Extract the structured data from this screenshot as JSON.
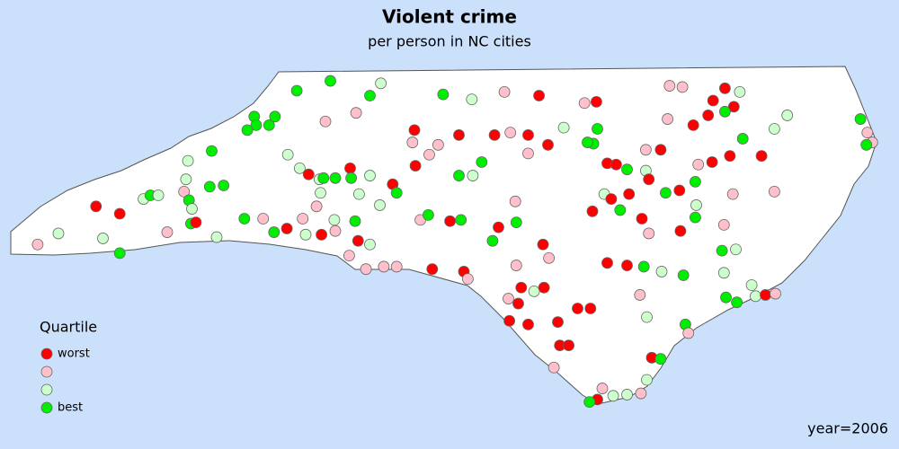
{
  "map": {
    "title": "Violent crime",
    "subtitle": "per person in NC cities",
    "legend": {
      "title": "Quartile",
      "entries": [
        {
          "color": "#ff0000",
          "label": "worst"
        },
        {
          "color": "#ffc0cb"
        },
        {
          "color": "#ccffcc"
        },
        {
          "color": "#00ee00",
          "label": "best"
        }
      ]
    },
    "year_label": "year=2006",
    "points": [
      [
        -84.01,
        35.15,
        2
      ],
      [
        -83.8,
        35.24,
        3
      ],
      [
        -83.42,
        35.46,
        1
      ],
      [
        -83.18,
        35.4,
        1
      ],
      [
        -83.35,
        35.2,
        3
      ],
      [
        -83.18,
        35.08,
        4
      ],
      [
        -82.94,
        35.52,
        3
      ],
      [
        -82.87,
        35.55,
        4
      ],
      [
        -82.79,
        35.55,
        3
      ],
      [
        -82.7,
        35.25,
        2
      ],
      [
        -82.51,
        35.68,
        3
      ],
      [
        -82.53,
        35.58,
        2
      ],
      [
        -82.48,
        35.51,
        4
      ],
      [
        -82.45,
        35.44,
        3
      ],
      [
        -82.46,
        35.32,
        4
      ],
      [
        -82.41,
        35.33,
        1
      ],
      [
        -82.49,
        35.83,
        3
      ],
      [
        -82.25,
        35.91,
        4
      ],
      [
        -82.27,
        35.62,
        4
      ],
      [
        -82.13,
        35.63,
        4
      ],
      [
        -82.2,
        35.21,
        3
      ],
      [
        -81.92,
        35.36,
        4
      ],
      [
        -81.73,
        35.36,
        2
      ],
      [
        -81.62,
        35.25,
        4
      ],
      [
        -81.49,
        35.28,
        1
      ],
      [
        -81.3,
        35.23,
        3
      ],
      [
        -81.14,
        35.23,
        1
      ],
      [
        -81.0,
        35.26,
        2
      ],
      [
        -81.82,
        36.19,
        4
      ],
      [
        -81.8,
        36.12,
        4
      ],
      [
        -81.67,
        36.12,
        4
      ],
      [
        -81.61,
        36.19,
        4
      ],
      [
        -81.89,
        36.08,
        4
      ],
      [
        -81.39,
        36.4,
        4
      ],
      [
        -81.05,
        36.48,
        4
      ],
      [
        -81.1,
        36.15,
        2
      ],
      [
        -80.79,
        36.22,
        2
      ],
      [
        -80.65,
        36.36,
        4
      ],
      [
        -80.54,
        36.46,
        3
      ],
      [
        -81.48,
        35.88,
        3
      ],
      [
        -81.36,
        35.77,
        3
      ],
      [
        -81.27,
        35.72,
        1
      ],
      [
        -81.16,
        35.68,
        3
      ],
      [
        -81.12,
        35.69,
        4
      ],
      [
        -81.0,
        35.69,
        4
      ],
      [
        -80.85,
        35.77,
        1
      ],
      [
        -80.84,
        35.69,
        4
      ],
      [
        -81.15,
        35.57,
        3
      ],
      [
        -81.19,
        35.46,
        2
      ],
      [
        -81.33,
        35.36,
        2
      ],
      [
        -81.01,
        35.35,
        3
      ],
      [
        -80.76,
        35.56,
        3
      ],
      [
        -80.65,
        35.71,
        3
      ],
      [
        -80.55,
        35.47,
        3
      ],
      [
        -80.42,
        35.64,
        1
      ],
      [
        -80.38,
        35.57,
        4
      ],
      [
        -80.8,
        35.34,
        4
      ],
      [
        -80.77,
        35.18,
        1
      ],
      [
        -80.65,
        35.15,
        3
      ],
      [
        -80.86,
        35.06,
        2
      ],
      [
        -80.69,
        34.95,
        2
      ],
      [
        -80.51,
        34.97,
        2
      ],
      [
        -80.38,
        34.97,
        2
      ],
      [
        -80.22,
        35.98,
        2
      ],
      [
        -80.19,
        35.79,
        1
      ],
      [
        -80.05,
        35.88,
        2
      ],
      [
        -79.96,
        35.96,
        2
      ],
      [
        -80.14,
        35.35,
        2
      ],
      [
        -80.06,
        35.39,
        4
      ],
      [
        -80.02,
        34.95,
        1
      ],
      [
        -79.84,
        35.34,
        1
      ],
      [
        -79.73,
        35.35,
        4
      ],
      [
        -79.7,
        34.93,
        1
      ],
      [
        -79.66,
        34.87,
        2
      ],
      [
        -79.91,
        36.37,
        4
      ],
      [
        -79.62,
        36.33,
        3
      ],
      [
        -79.29,
        36.39,
        2
      ],
      [
        -78.94,
        36.36,
        1
      ],
      [
        -78.48,
        36.3,
        2
      ],
      [
        -78.36,
        36.31,
        1
      ],
      [
        -80.2,
        36.08,
        1
      ],
      [
        -79.75,
        36.04,
        1
      ],
      [
        -79.39,
        36.04,
        1
      ],
      [
        -79.23,
        36.06,
        2
      ],
      [
        -79.05,
        36.04,
        1
      ],
      [
        -79.05,
        35.89,
        2
      ],
      [
        -78.85,
        35.96,
        1
      ],
      [
        -78.69,
        36.1,
        3
      ],
      [
        -79.52,
        35.82,
        4
      ],
      [
        -79.75,
        35.71,
        4
      ],
      [
        -79.61,
        35.71,
        3
      ],
      [
        -79.18,
        35.5,
        2
      ],
      [
        -79.17,
        35.33,
        4
      ],
      [
        -79.41,
        35.18,
        4
      ],
      [
        -79.35,
        35.29,
        1
      ],
      [
        -78.9,
        35.15,
        1
      ],
      [
        -78.84,
        35.04,
        2
      ],
      [
        -79.17,
        34.98,
        2
      ],
      [
        -79.12,
        34.8,
        1
      ],
      [
        -79.25,
        34.71,
        2
      ],
      [
        -79.15,
        34.67,
        1
      ],
      [
        -78.99,
        34.77,
        3
      ],
      [
        -78.89,
        34.8,
        1
      ],
      [
        -79.05,
        34.5,
        1
      ],
      [
        -79.24,
        34.53,
        1
      ],
      [
        -78.75,
        34.52,
        1
      ],
      [
        -78.55,
        34.63,
        1
      ],
      [
        -78.42,
        34.63,
        1
      ],
      [
        -78.73,
        34.33,
        1
      ],
      [
        -78.64,
        34.33,
        1
      ],
      [
        -78.79,
        34.15,
        2
      ],
      [
        -78.39,
        35.97,
        4
      ],
      [
        -78.35,
        36.09,
        4
      ],
      [
        -78.45,
        35.98,
        4
      ],
      [
        -78.25,
        35.81,
        1
      ],
      [
        -78.16,
        35.8,
        1
      ],
      [
        -78.05,
        35.76,
        4
      ],
      [
        -78.28,
        35.56,
        3
      ],
      [
        -78.21,
        35.52,
        1
      ],
      [
        -78.03,
        35.56,
        1
      ],
      [
        -78.12,
        35.43,
        4
      ],
      [
        -78.4,
        35.42,
        1
      ],
      [
        -77.86,
        35.75,
        3
      ],
      [
        -77.86,
        35.92,
        2
      ],
      [
        -77.71,
        35.92,
        1
      ],
      [
        -77.64,
        36.17,
        2
      ],
      [
        -77.38,
        36.12,
        1
      ],
      [
        -77.23,
        36.2,
        1
      ],
      [
        -77.06,
        36.42,
        1
      ],
      [
        -77.18,
        36.32,
        1
      ],
      [
        -76.97,
        36.27,
        1
      ],
      [
        -77.06,
        36.23,
        4
      ],
      [
        -76.91,
        36.39,
        3
      ],
      [
        -77.62,
        36.44,
        2
      ],
      [
        -77.49,
        36.43,
        2
      ],
      [
        -76.88,
        36.01,
        4
      ],
      [
        -77.01,
        35.87,
        1
      ],
      [
        -77.19,
        35.82,
        1
      ],
      [
        -77.33,
        35.8,
        2
      ],
      [
        -76.69,
        35.87,
        1
      ],
      [
        -76.56,
        36.09,
        3
      ],
      [
        -76.43,
        36.2,
        3
      ],
      [
        -75.69,
        36.17,
        4
      ],
      [
        -75.62,
        36.06,
        2
      ],
      [
        -75.57,
        35.98,
        2
      ],
      [
        -75.63,
        35.96,
        4
      ],
      [
        -77.52,
        35.59,
        1
      ],
      [
        -77.36,
        35.66,
        4
      ],
      [
        -77.35,
        35.47,
        3
      ],
      [
        -77.36,
        35.37,
        4
      ],
      [
        -77.9,
        35.36,
        1
      ],
      [
        -77.51,
        35.26,
        1
      ],
      [
        -77.83,
        35.24,
        2
      ],
      [
        -77.07,
        35.31,
        2
      ],
      [
        -76.98,
        35.56,
        2
      ],
      [
        -76.56,
        35.58,
        2
      ],
      [
        -77.09,
        35.1,
        4
      ],
      [
        -76.95,
        35.11,
        3
      ],
      [
        -77.07,
        34.92,
        3
      ],
      [
        -78.25,
        35.0,
        1
      ],
      [
        -78.05,
        34.98,
        1
      ],
      [
        -77.88,
        34.97,
        4
      ],
      [
        -77.7,
        34.93,
        3
      ],
      [
        -77.48,
        34.9,
        4
      ],
      [
        -77.92,
        34.74,
        2
      ],
      [
        -77.85,
        34.56,
        3
      ],
      [
        -77.46,
        34.5,
        4
      ],
      [
        -77.43,
        34.43,
        2
      ],
      [
        -77.05,
        34.72,
        4
      ],
      [
        -76.94,
        34.68,
        4
      ],
      [
        -76.75,
        34.73,
        3
      ],
      [
        -76.65,
        34.74,
        1
      ],
      [
        -76.55,
        34.75,
        2
      ],
      [
        -76.79,
        34.82,
        3
      ],
      [
        -77.8,
        34.23,
        1
      ],
      [
        -77.71,
        34.22,
        4
      ],
      [
        -77.85,
        34.05,
        3
      ],
      [
        -77.91,
        33.94,
        2
      ],
      [
        -78.05,
        33.93,
        3
      ],
      [
        -78.19,
        33.92,
        3
      ],
      [
        -78.3,
        33.98,
        2
      ],
      [
        -78.35,
        33.89,
        1
      ],
      [
        -78.43,
        33.87,
        4
      ],
      [
        -77.66,
        35.57,
        4
      ],
      [
        -77.83,
        35.68,
        1
      ]
    ]
  }
}
